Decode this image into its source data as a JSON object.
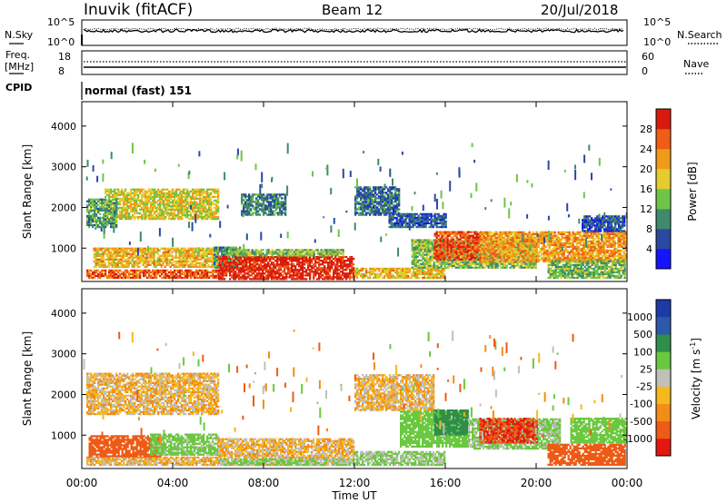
{
  "header": {
    "station": "Inuvik (fitACF)",
    "beam": "Beam 12",
    "date": "20/Jul/2018"
  },
  "noise_panel": {
    "left_label": "N.Sky",
    "right_label": "N.Search",
    "left_ticks": [
      "10^5",
      "10^0"
    ],
    "right_ticks": [
      "10^5",
      "10^0"
    ]
  },
  "freq_panel": {
    "left_label": "Freq.",
    "left_unit": "[MHz]",
    "right_label": "Nave",
    "left_ticks": [
      "18",
      "8"
    ],
    "right_ticks": [
      "60",
      "0"
    ]
  },
  "cpid": {
    "label": "CPID",
    "program": "normal (fast) 151"
  },
  "colors": {
    "power_scale": [
      "#1414ff",
      "#2c49a0",
      "#3f8a6b",
      "#6fc447",
      "#e3cc2b",
      "#f09a1a",
      "#ef5d17",
      "#d91b0f"
    ],
    "velocity_scale": [
      "#e4170f",
      "#ee5b17",
      "#f38c18",
      "#f5b81d",
      "#c0c0b8",
      "#6ac83e",
      "#2f8e4a",
      "#2c5aa8",
      "#1e3aa8"
    ]
  },
  "chart_data": [
    {
      "type": "heatmap",
      "title": "Power",
      "xlabel": "Time UT",
      "ylabel": "Slant Range [km]",
      "x_ticks": [
        "00:00",
        "04:00",
        "08:00",
        "12:00",
        "16:00",
        "20:00",
        "00:00"
      ],
      "xlim": [
        0,
        24
      ],
      "y_ticks": [
        1000,
        2000,
        3000,
        4000
      ],
      "ylim": [
        180,
        4600
      ],
      "colorbar": {
        "label": "Power [dB]",
        "ticks": [
          4,
          8,
          12,
          16,
          20,
          24,
          28
        ],
        "range": [
          0,
          32
        ]
      },
      "regions": [
        {
          "t": [
            0.2,
            6.2
          ],
          "r": [
            250,
            460
          ],
          "power": 26
        },
        {
          "t": [
            0.5,
            6.0
          ],
          "r": [
            520,
            1000
          ],
          "power": 20
        },
        {
          "t": [
            1.0,
            6.0
          ],
          "r": [
            1700,
            2450
          ],
          "power": 18
        },
        {
          "t": [
            0.2,
            1.5
          ],
          "r": [
            1500,
            2200
          ],
          "power": 12
        },
        {
          "t": [
            5.8,
            7.0
          ],
          "r": [
            500,
            1000
          ],
          "power": 10
        },
        {
          "t": [
            6.0,
            12.0
          ],
          "r": [
            220,
            800
          ],
          "power": 30
        },
        {
          "t": [
            6.5,
            11.5
          ],
          "r": [
            800,
            980
          ],
          "power": 14
        },
        {
          "t": [
            7.0,
            9.0
          ],
          "r": [
            1800,
            2300
          ],
          "power": 9
        },
        {
          "t": [
            12.0,
            16.0
          ],
          "r": [
            250,
            500
          ],
          "power": 20
        },
        {
          "t": [
            12.0,
            14.0
          ],
          "r": [
            1800,
            2500
          ],
          "power": 8
        },
        {
          "t": [
            13.5,
            16.0
          ],
          "r": [
            1500,
            1850
          ],
          "power": 7
        },
        {
          "t": [
            14.5,
            20.0
          ],
          "r": [
            500,
            1200
          ],
          "power": 14
        },
        {
          "t": [
            15.5,
            17.5
          ],
          "r": [
            700,
            1400
          ],
          "power": 27
        },
        {
          "t": [
            17.5,
            23.9
          ],
          "r": [
            650,
            1400
          ],
          "power": 22
        },
        {
          "t": [
            20.5,
            23.9
          ],
          "r": [
            250,
            700
          ],
          "power": 13
        },
        {
          "t": [
            22.0,
            23.9
          ],
          "r": [
            1400,
            1800
          ],
          "power": 6
        }
      ]
    },
    {
      "type": "heatmap",
      "title": "Velocity",
      "xlabel": "Time UT",
      "ylabel": "Slant Range [km]",
      "x_ticks": [
        "00:00",
        "04:00",
        "08:00",
        "12:00",
        "16:00",
        "20:00",
        "00:00"
      ],
      "xlim": [
        0,
        24
      ],
      "y_ticks": [
        1000,
        2000,
        3000,
        4000
      ],
      "ylim": [
        180,
        4600
      ],
      "colorbar": {
        "label": "Velocity [m s",
        "label_sup": "-1",
        "label_close": "]",
        "ticks": [
          "1000",
          "500",
          "100",
          "25",
          "-25",
          "-100",
          "-500",
          "-1000"
        ]
      },
      "regions": [
        {
          "t": [
            0.2,
            6.0
          ],
          "r": [
            250,
            460
          ],
          "velocity": 0
        },
        {
          "t": [
            0.3,
            3.5
          ],
          "r": [
            460,
            1000
          ],
          "velocity": -300
        },
        {
          "t": [
            3.0,
            6.0
          ],
          "r": [
            500,
            1000
          ],
          "velocity": 150
        },
        {
          "t": [
            0.2,
            6.0
          ],
          "r": [
            1500,
            2500
          ],
          "velocity": 0
        },
        {
          "t": [
            6.0,
            12.0
          ],
          "r": [
            250,
            900
          ],
          "velocity": 0
        },
        {
          "t": [
            6.0,
            12.0
          ],
          "r": [
            250,
            420
          ],
          "velocity": 120
        },
        {
          "t": [
            12.0,
            16.0
          ],
          "r": [
            250,
            600
          ],
          "velocity": 120
        },
        {
          "t": [
            12.0,
            15.5
          ],
          "r": [
            1600,
            2500
          ],
          "velocity": 0
        },
        {
          "t": [
            14.0,
            17.0
          ],
          "r": [
            700,
            1600
          ],
          "velocity": 300
        },
        {
          "t": [
            15.5,
            17.0
          ],
          "r": [
            1000,
            1600
          ],
          "velocity": 700
        },
        {
          "t": [
            17.0,
            21.0
          ],
          "r": [
            650,
            1400
          ],
          "velocity": 120
        },
        {
          "t": [
            17.5,
            20.0
          ],
          "r": [
            800,
            1400
          ],
          "velocity": -500
        },
        {
          "t": [
            20.5,
            23.9
          ],
          "r": [
            250,
            750
          ],
          "velocity": -300
        },
        {
          "t": [
            21.5,
            23.9
          ],
          "r": [
            800,
            1400
          ],
          "velocity": 200
        }
      ]
    }
  ]
}
